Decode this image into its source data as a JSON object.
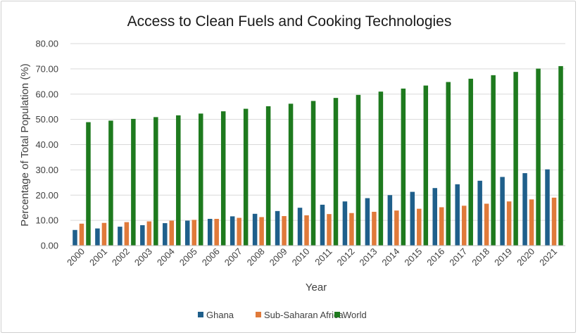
{
  "chart_data": {
    "type": "bar",
    "title": "Access to Clean Fuels and Cooking Technologies",
    "xlabel": "Year",
    "ylabel": "Percentage of  Total Population (%)",
    "ylim": [
      0,
      80
    ],
    "yticks": [
      "0.00",
      "10.00",
      "20.00",
      "30.00",
      "40.00",
      "50.00",
      "60.00",
      "70.00",
      "80.00"
    ],
    "grid": true,
    "legend_position": "bottom",
    "categories": [
      "2000",
      "2001",
      "2002",
      "2003",
      "2004",
      "2005",
      "2006",
      "2007",
      "2008",
      "2009",
      "2010",
      "2011",
      "2012",
      "2013",
      "2014",
      "2015",
      "2016",
      "2017",
      "2018",
      "2019",
      "2020",
      "2021"
    ],
    "series": [
      {
        "name": "Ghana",
        "color": "#1f5f8b",
        "values": [
          6.2,
          6.8,
          7.5,
          8.1,
          8.9,
          9.9,
          10.6,
          11.6,
          12.6,
          13.7,
          15.0,
          16.2,
          17.5,
          18.8,
          20.0,
          21.3,
          22.8,
          24.3,
          25.7,
          27.2,
          28.7,
          30.2
        ]
      },
      {
        "name": "Sub-Saharan Africa",
        "color": "#e07a3a",
        "values": [
          8.7,
          9.0,
          9.3,
          9.6,
          9.9,
          10.2,
          10.6,
          11.0,
          11.3,
          11.7,
          12.0,
          12.5,
          12.9,
          13.4,
          13.9,
          14.6,
          15.2,
          15.8,
          16.6,
          17.5,
          18.3,
          19.0
        ]
      },
      {
        "name": "World",
        "color": "#1e7a1e",
        "values": [
          48.9,
          49.5,
          50.2,
          50.9,
          51.6,
          52.3,
          53.2,
          54.2,
          55.2,
          56.2,
          57.3,
          58.5,
          59.7,
          61.0,
          62.2,
          63.4,
          64.8,
          66.1,
          67.5,
          68.8,
          70.1,
          71.1
        ]
      }
    ]
  }
}
